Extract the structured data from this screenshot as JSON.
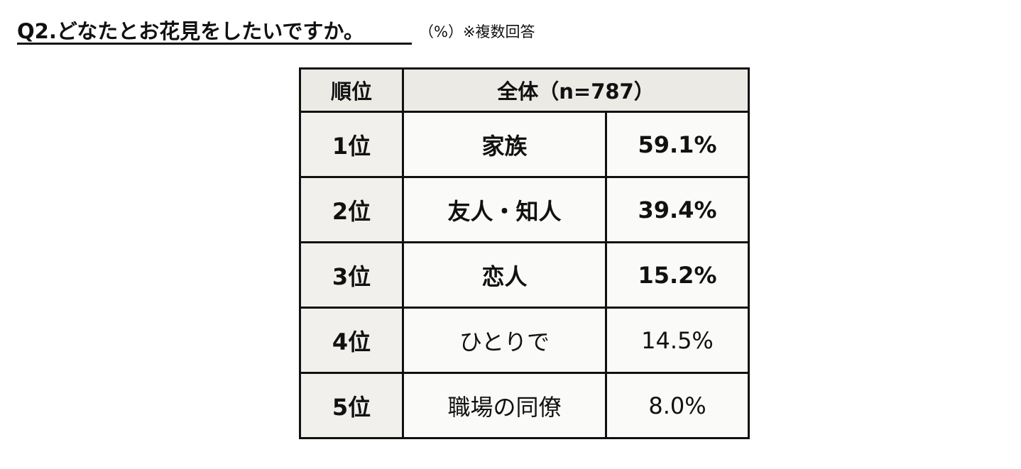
{
  "header": {
    "title": "Q2.どなたとお花見をしたいですか。",
    "note": "（%）※複数回答"
  },
  "table": {
    "headers": {
      "rank": "順位",
      "group": "全体（n=787）"
    },
    "rows": [
      {
        "rank": "1位",
        "item": "家族",
        "value": "59.1%"
      },
      {
        "rank": "2位",
        "item": "友人・知人",
        "value": "39.4%"
      },
      {
        "rank": "3位",
        "item": "恋人",
        "value": "15.2%"
      },
      {
        "rank": "4位",
        "item": "ひとりで",
        "value": "14.5%"
      },
      {
        "rank": "5位",
        "item": "職場の同僚",
        "value": "8.0%"
      }
    ]
  }
}
